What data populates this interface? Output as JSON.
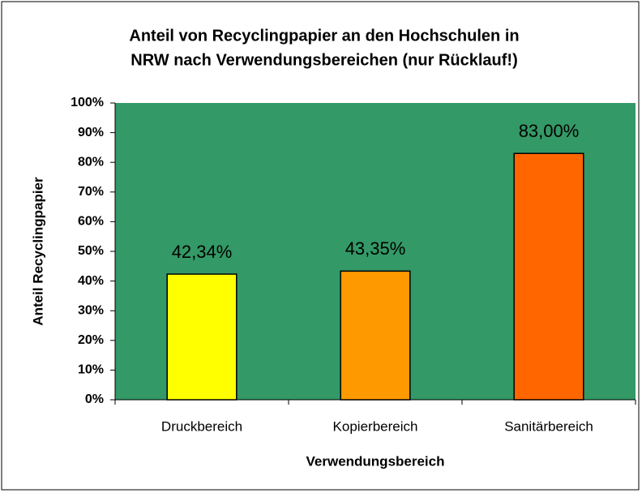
{
  "chart_data": {
    "type": "bar",
    "title": [
      "Anteil von Recyclingpapier an den Hochschulen in",
      "NRW nach Verwendungsbereichen (nur Rücklauf!)"
    ],
    "x_label": "Verwendungsbereich",
    "y_label": "Anteil Recyclingpapier",
    "categories": [
      "Druckbereich",
      "Kopierbereich",
      "Sanitärbereich"
    ],
    "values": [
      42.34,
      43.35,
      83.0
    ],
    "value_labels": [
      "42,34%",
      "43,35%",
      "83,00%"
    ],
    "colors": [
      "#ffff00",
      "#ff9900",
      "#ff6600"
    ],
    "plot_background": "#339966",
    "ylim": [
      0,
      100
    ],
    "yticks": [
      {
        "value": 0,
        "label": "0%"
      },
      {
        "value": 10,
        "label": "10%"
      },
      {
        "value": 20,
        "label": "20%"
      },
      {
        "value": 30,
        "label": "30%"
      },
      {
        "value": 40,
        "label": "40%"
      },
      {
        "value": 50,
        "label": "50%"
      },
      {
        "value": 60,
        "label": "60%"
      },
      {
        "value": 70,
        "label": "70%"
      },
      {
        "value": 80,
        "label": "80%"
      },
      {
        "value": 90,
        "label": "90%"
      },
      {
        "value": 100,
        "label": "100%"
      }
    ]
  }
}
